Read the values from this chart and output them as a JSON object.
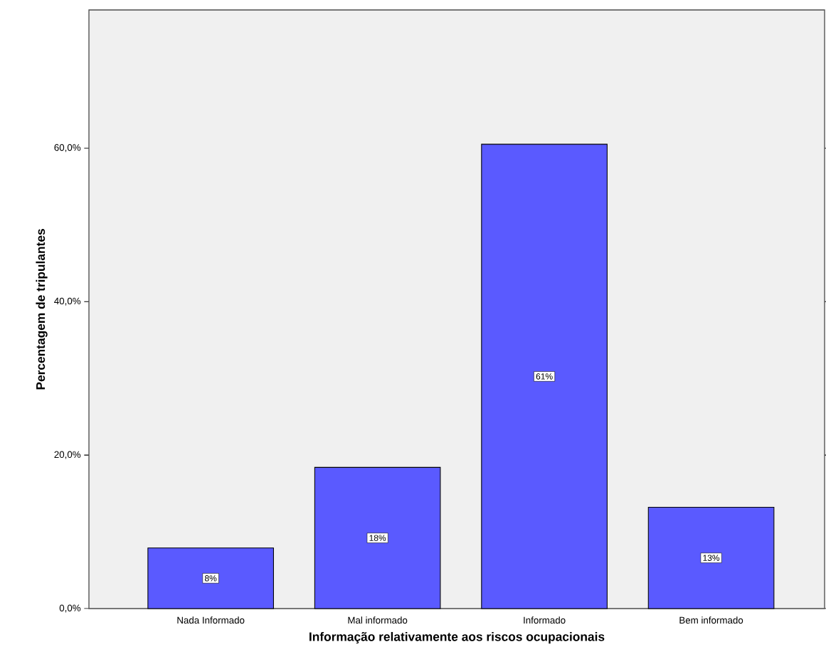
{
  "chart_data": {
    "type": "bar",
    "xlabel": "Informação relativamente aos riscos ocupacionais",
    "ylabel": "Percentagem de tripulantes",
    "categories": [
      "Nada Informado",
      "Mal informado",
      "Informado",
      "Bem informado"
    ],
    "values": [
      7.9,
      18.4,
      60.5,
      13.2
    ],
    "value_labels": [
      "8%",
      "18%",
      "61%",
      "13%"
    ],
    "color": "#5a5aff",
    "ylim": [
      0,
      78
    ],
    "yticks": [
      {
        "value": 0,
        "label": "0,0%"
      },
      {
        "value": 20,
        "label": "20,0%"
      },
      {
        "value": 40,
        "label": "40,0%"
      },
      {
        "value": 60,
        "label": "60,0%"
      }
    ]
  }
}
